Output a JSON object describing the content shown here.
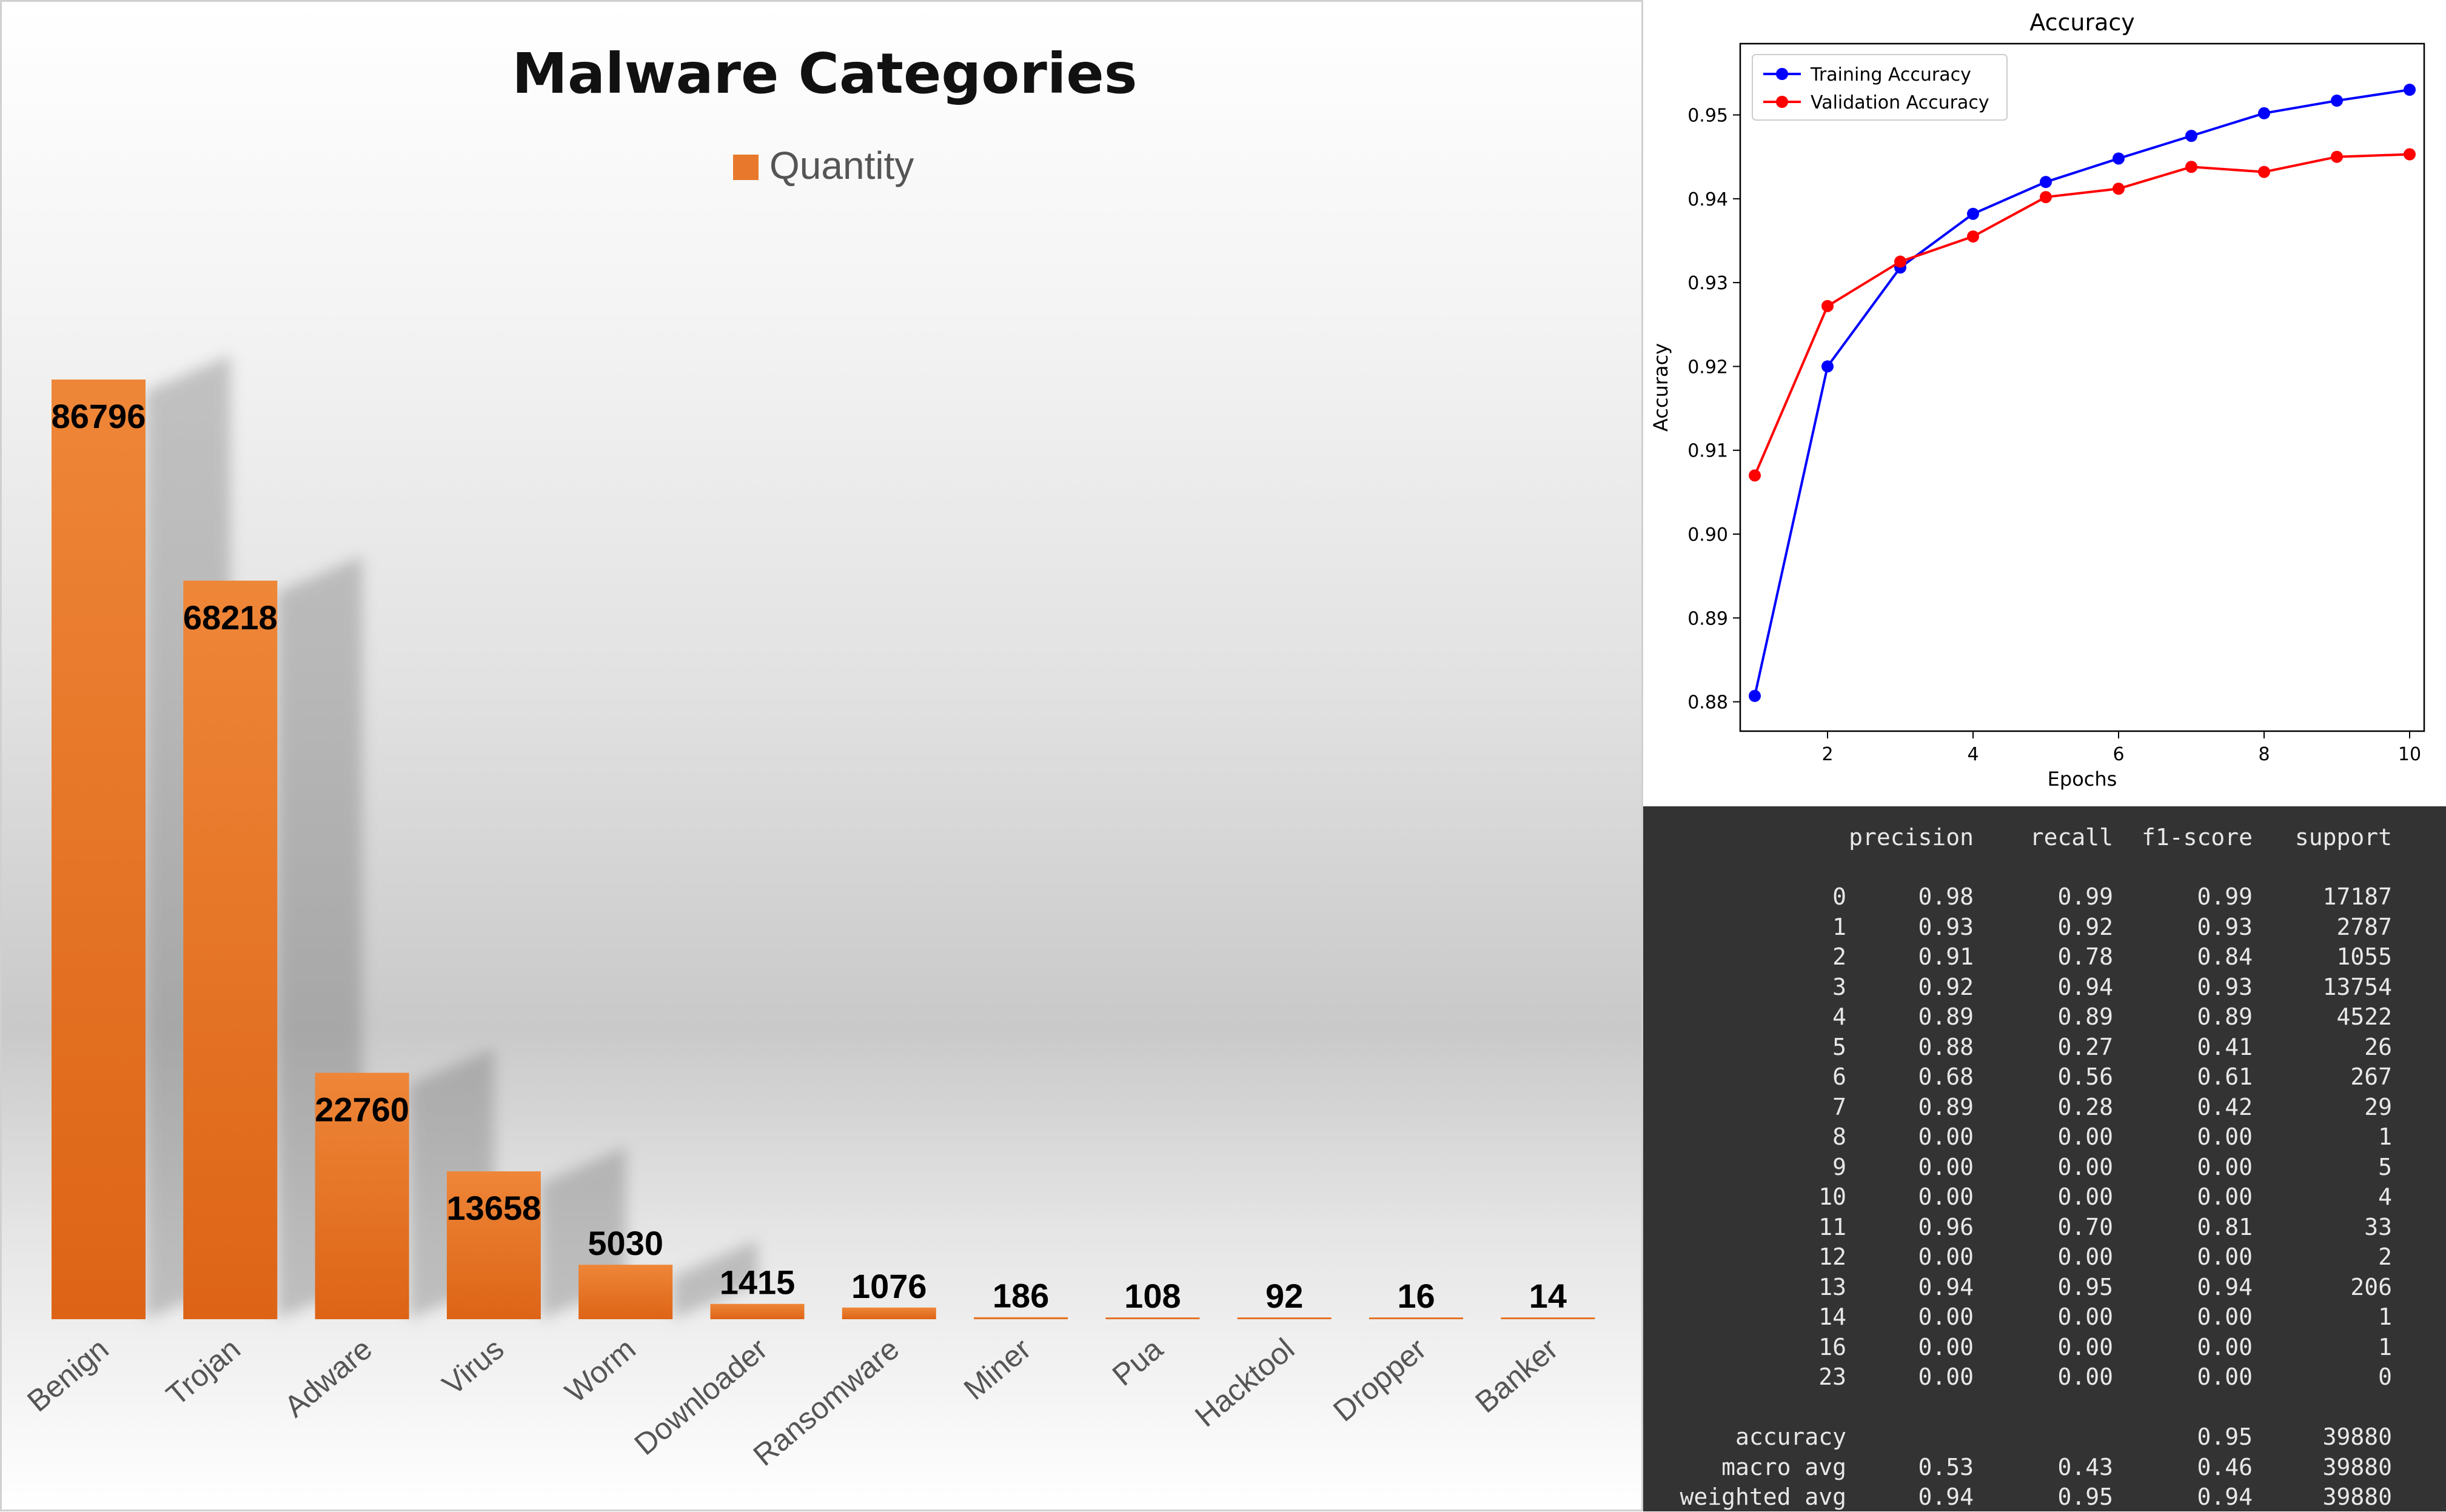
{
  "chart_data": [
    {
      "type": "bar",
      "title": "Malware Categories",
      "legend": [
        "Quantity"
      ],
      "legend_position": "top",
      "bar_color": "#e8792c",
      "categories": [
        "Benign",
        "Trojan",
        "Adware",
        "Virus",
        "Worm",
        "Downloader",
        "Ransomware",
        "Miner",
        "Pua",
        "Hacktool",
        "Dropper",
        "Banker"
      ],
      "series": [
        {
          "name": "Quantity",
          "values": [
            86796,
            68218,
            22760,
            13658,
            5030,
            1415,
            1076,
            186,
            108,
            92,
            16,
            14
          ]
        }
      ],
      "data_labels": [
        "86796",
        "68218",
        "22760",
        "13658",
        "5030",
        "1415",
        "1076",
        "186",
        "108",
        "92",
        "16",
        "14"
      ],
      "grid": false
    },
    {
      "type": "line",
      "title": "Accuracy",
      "xlabel": "Epochs",
      "ylabel": "Accuracy",
      "x": [
        1,
        2,
        3,
        4,
        5,
        6,
        7,
        8,
        9,
        10
      ],
      "xlim": [
        0.8,
        10.2
      ],
      "ylim": [
        0.8765,
        0.9585
      ],
      "xticks": [
        2,
        4,
        6,
        8,
        10
      ],
      "xtick_labels": [
        "2",
        "4",
        "6",
        "8",
        "10"
      ],
      "yticks": [
        0.88,
        0.89,
        0.9,
        0.91,
        0.92,
        0.93,
        0.94,
        0.95
      ],
      "ytick_labels": [
        "0.88",
        "0.89",
        "0.90",
        "0.91",
        "0.92",
        "0.93",
        "0.94",
        "0.95"
      ],
      "grid": false,
      "legend_position": "upper left",
      "series": [
        {
          "name": "Training Accuracy",
          "color": "#0000ff",
          "values": [
            0.8807,
            0.92,
            0.9318,
            0.9382,
            0.942,
            0.9448,
            0.9475,
            0.9502,
            0.9517,
            0.953
          ]
        },
        {
          "name": "Validation Accuracy",
          "color": "#ff0000",
          "values": [
            0.907,
            0.9272,
            0.9325,
            0.9355,
            0.9402,
            0.9412,
            0.9438,
            0.9432,
            0.945,
            0.9453
          ]
        }
      ]
    },
    {
      "type": "table",
      "header": [
        "",
        "precision",
        "recall",
        "f1-score",
        "support"
      ],
      "rows": [
        [
          "0",
          "0.98",
          "0.99",
          "0.99",
          "17187"
        ],
        [
          "1",
          "0.93",
          "0.92",
          "0.93",
          "2787"
        ],
        [
          "2",
          "0.91",
          "0.78",
          "0.84",
          "1055"
        ],
        [
          "3",
          "0.92",
          "0.94",
          "0.93",
          "13754"
        ],
        [
          "4",
          "0.89",
          "0.89",
          "0.89",
          "4522"
        ],
        [
          "5",
          "0.88",
          "0.27",
          "0.41",
          "26"
        ],
        [
          "6",
          "0.68",
          "0.56",
          "0.61",
          "267"
        ],
        [
          "7",
          "0.89",
          "0.28",
          "0.42",
          "29"
        ],
        [
          "8",
          "0.00",
          "0.00",
          "0.00",
          "1"
        ],
        [
          "9",
          "0.00",
          "0.00",
          "0.00",
          "5"
        ],
        [
          "10",
          "0.00",
          "0.00",
          "0.00",
          "4"
        ],
        [
          "11",
          "0.96",
          "0.70",
          "0.81",
          "33"
        ],
        [
          "12",
          "0.00",
          "0.00",
          "0.00",
          "2"
        ],
        [
          "13",
          "0.94",
          "0.95",
          "0.94",
          "206"
        ],
        [
          "14",
          "0.00",
          "0.00",
          "0.00",
          "1"
        ],
        [
          "16",
          "0.00",
          "0.00",
          "0.00",
          "1"
        ],
        [
          "23",
          "0.00",
          "0.00",
          "0.00",
          "0"
        ],
        [
          "",
          "",
          "",
          "",
          ""
        ],
        [
          "accuracy",
          "",
          "",
          "0.95",
          "39880"
        ],
        [
          "macro avg",
          "0.53",
          "0.43",
          "0.46",
          "39880"
        ],
        [
          "weighted avg",
          "0.94",
          "0.95",
          "0.94",
          "39880"
        ]
      ]
    }
  ]
}
